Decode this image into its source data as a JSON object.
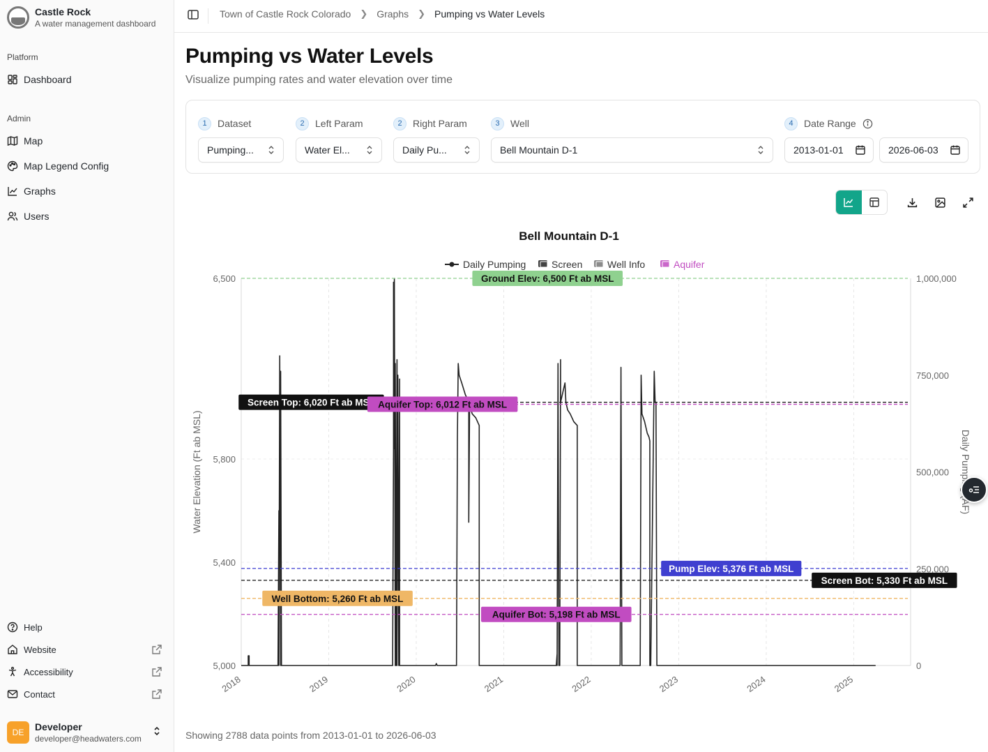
{
  "brand": {
    "title": "Castle Rock",
    "subtitle": "A water management dashboard"
  },
  "sidebar": {
    "platform_label": "Platform",
    "platform_items": [
      {
        "label": "Dashboard",
        "icon": "dashboard-icon"
      }
    ],
    "admin_label": "Admin",
    "admin_items": [
      {
        "label": "Map",
        "icon": "map-icon"
      },
      {
        "label": "Map Legend Config",
        "icon": "palette-icon"
      },
      {
        "label": "Graphs",
        "icon": "chart-icon"
      },
      {
        "label": "Users",
        "icon": "users-icon"
      }
    ],
    "footer_items": [
      {
        "label": "Help",
        "icon": "help-icon"
      },
      {
        "label": "Website",
        "icon": "home-icon"
      },
      {
        "label": "Accessibility",
        "icon": "accessibility-icon"
      },
      {
        "label": "Contact",
        "icon": "mail-icon"
      }
    ],
    "user": {
      "initials": "DE",
      "name": "Developer",
      "email": "developer@headwaters.com"
    }
  },
  "breadcrumb": [
    "Town of Castle Rock Colorado",
    "Graphs",
    "Pumping vs Water Levels"
  ],
  "page": {
    "title": "Pumping vs Water Levels",
    "subtitle": "Visualize pumping rates and water elevation over time"
  },
  "filters": {
    "dataset": {
      "step": "1",
      "label": "Dataset",
      "value": "Pumping..."
    },
    "left_param": {
      "step": "2",
      "label": "Left Param",
      "value": "Water El..."
    },
    "right_param": {
      "step": "2",
      "label": "Right Param",
      "value": "Daily Pu..."
    },
    "well": {
      "step": "3",
      "label": "Well",
      "value": "Bell Mountain D-1"
    },
    "date_range": {
      "step": "4",
      "label": "Date Range",
      "start": "2013-01-01",
      "end": "2026-06-03"
    }
  },
  "toolbar": {
    "buttons": [
      "chart-view-icon",
      "table-view-icon",
      "download-icon",
      "image-icon",
      "expand-icon"
    ],
    "active": "chart-view-icon",
    "accent": "#12a58a"
  },
  "footnote": "Showing 2788 data points from 2013-01-01 to 2026-06-03",
  "chart_data": {
    "type": "line",
    "title": "Bell Mountain D-1",
    "ylabel": "Water Elevation (Ft ab MSL)",
    "y2label": "Daily Pumping (AF)",
    "ylim": [
      5000,
      6500
    ],
    "y2lim": [
      0,
      1000000
    ],
    "xlim": [
      2018.0,
      2025.65
    ],
    "x_ticks": [
      "2018",
      "2019",
      "2020",
      "2021",
      "2022",
      "2023",
      "2024",
      "2025"
    ],
    "y_ticks": [
      "5,000",
      "5,400",
      "5,800",
      "6,500"
    ],
    "y2_ticks": [
      "0",
      "250,000",
      "500,000",
      "750,000",
      "1,000,000"
    ],
    "grid": true,
    "legend": {
      "position": "top-center",
      "items": [
        {
          "label": "Daily Pumping",
          "kind": "line",
          "color": "#222222"
        },
        {
          "label": "Screen",
          "kind": "box",
          "color": "#222222"
        },
        {
          "label": "Well Info",
          "kind": "box",
          "color": "#777777"
        },
        {
          "label": "Aquifer",
          "kind": "box",
          "color": "#c14cc1"
        }
      ]
    },
    "reference_lines": [
      {
        "label": "Ground Elev: 6,500 Ft ab MSL",
        "value": 6500,
        "color": "#8fd18f",
        "text_color": "#111111",
        "label_x": 2021.5
      },
      {
        "label": "Screen Top: 6,020 Ft ab MSL",
        "value": 6020,
        "color": "#111111",
        "text_color": "#ffffff",
        "label_x": 2018.8
      },
      {
        "label": "Aquifer Top: 6,012 Ft ab MSL",
        "value": 6012,
        "color": "#c14cc1",
        "text_color": "#111111",
        "label_x": 2020.3
      },
      {
        "label": "Pump Elev: 5,376 Ft ab MSL",
        "value": 5376,
        "color": "#3f3fd0",
        "text_color": "#ffffff",
        "label_x": 2023.6
      },
      {
        "label": "Screen Bot: 5,330 Ft ab MSL",
        "value": 5330,
        "color": "#111111",
        "text_color": "#ffffff",
        "label_x": 2025.35
      },
      {
        "label": "Well Bottom: 5,260 Ft ab MSL",
        "value": 5260,
        "color": "#efb766",
        "text_color": "#111111",
        "label_x": 2019.1
      },
      {
        "label": "Aquifer Bot: 5,198 Ft ab MSL",
        "value": 5198,
        "color": "#c14cc1",
        "text_color": "#111111",
        "label_x": 2021.6
      }
    ],
    "series": [
      {
        "name": "Daily Pumping",
        "axis": "right",
        "color": "#222222",
        "x": [
          2018.0,
          2018.08,
          2018.08,
          2018.09,
          2018.09,
          2018.42,
          2018.43,
          2018.43,
          2018.44,
          2018.45,
          2018.45,
          2018.46,
          2018.47,
          2019.73,
          2019.74,
          2019.74,
          2019.75,
          2019.75,
          2019.76,
          2019.76,
          2019.77,
          2019.78,
          2019.78,
          2019.79,
          2019.8,
          2019.81,
          2019.81,
          2019.82,
          2019.83,
          2019.84,
          2020.22,
          2020.23,
          2020.24,
          2020.46,
          2020.47,
          2020.48,
          2020.49,
          2020.52,
          2020.56,
          2020.6,
          2020.6,
          2020.61,
          2020.64,
          2020.68,
          2020.72,
          2020.72,
          2021.6,
          2021.61,
          2021.61,
          2021.62,
          2021.63,
          2021.64,
          2021.65,
          2021.65,
          2021.7,
          2021.71,
          2021.73,
          2021.76,
          2021.8,
          2021.84,
          2021.84,
          2022.33,
          2022.34,
          2022.35,
          2022.36,
          2022.56,
          2022.57,
          2022.58,
          2022.61,
          2022.64,
          2022.66,
          2022.67,
          2022.67,
          2022.68,
          2022.72,
          2022.73,
          2022.74,
          2022.75,
          2022.76,
          2022.8,
          2022.8,
          2025.25
        ],
        "y": [
          0,
          0,
          25000,
          25000,
          0,
          0,
          400000,
          0,
          800000,
          0,
          760000,
          0,
          0,
          0,
          560000,
          990000,
          560000,
          1000000,
          0,
          780000,
          0,
          790000,
          0,
          750000,
          0,
          740000,
          0,
          0,
          0,
          0,
          0,
          5000,
          0,
          0,
          590000,
          780000,
          750000,
          730000,
          700000,
          680000,
          370000,
          670000,
          650000,
          640000,
          620000,
          0,
          0,
          30000,
          0,
          780000,
          0,
          0,
          790000,
          680000,
          730000,
          680000,
          660000,
          650000,
          630000,
          620000,
          0,
          0,
          770000,
          0,
          0,
          0,
          750000,
          650000,
          630000,
          600000,
          590000,
          580000,
          0,
          0,
          760000,
          680000,
          680000,
          0,
          0,
          0,
          0,
          0
        ]
      }
    ]
  }
}
